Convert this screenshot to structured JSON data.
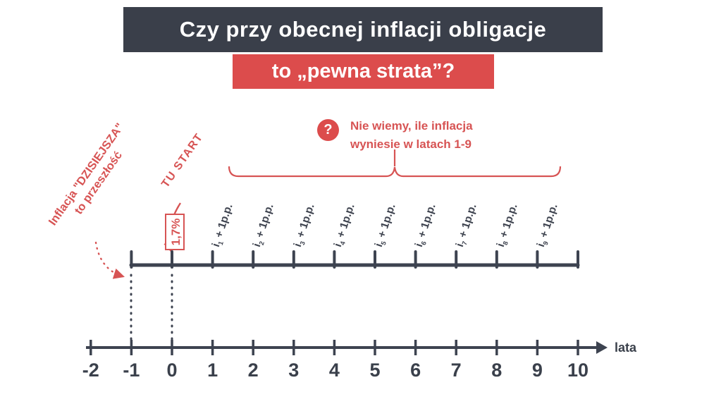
{
  "title": {
    "line1": "Czy przy obecnej inflacji obligacje",
    "line2": "to „pewna strata”?"
  },
  "question": {
    "icon": "?",
    "line1": "Nie wiemy, ile inflacja",
    "line2": "wyniesie w latach 1-9"
  },
  "annotations": {
    "past_inflation_line1": "Inflacja \"DZISIEJSZA\"",
    "past_inflation_line2": "to przeszłość",
    "start_label": "TU START",
    "first_rate": "1,7%"
  },
  "timeline": {
    "axis_label": "lata",
    "axis_values": [
      -2,
      -1,
      0,
      1,
      2,
      3,
      4,
      5,
      6,
      7,
      8,
      9,
      10
    ],
    "upper_ticks": [
      -1,
      0,
      1,
      2,
      3,
      4,
      5,
      6,
      7,
      8,
      9,
      10
    ],
    "interval_labels": [
      {
        "base": "i",
        "sub": "1",
        "suffix": " + 1p.p."
      },
      {
        "base": "i",
        "sub": "2",
        "suffix": " + 1p.p."
      },
      {
        "base": "i",
        "sub": "3",
        "suffix": " + 1p.p."
      },
      {
        "base": "i",
        "sub": "4",
        "suffix": " + 1p.p."
      },
      {
        "base": "i",
        "sub": "5",
        "suffix": " + 1p.p."
      },
      {
        "base": "i",
        "sub": "6",
        "suffix": " + 1p.p."
      },
      {
        "base": "i",
        "sub": "7",
        "suffix": " + 1p.p."
      },
      {
        "base": "i",
        "sub": "8",
        "suffix": " + 1p.p."
      },
      {
        "base": "i",
        "sub": "9",
        "suffix": " + 1p.p."
      }
    ]
  },
  "colors": {
    "red": "#dc4c4c",
    "red_text": "#d75454",
    "dark": "#3a3f4a"
  }
}
